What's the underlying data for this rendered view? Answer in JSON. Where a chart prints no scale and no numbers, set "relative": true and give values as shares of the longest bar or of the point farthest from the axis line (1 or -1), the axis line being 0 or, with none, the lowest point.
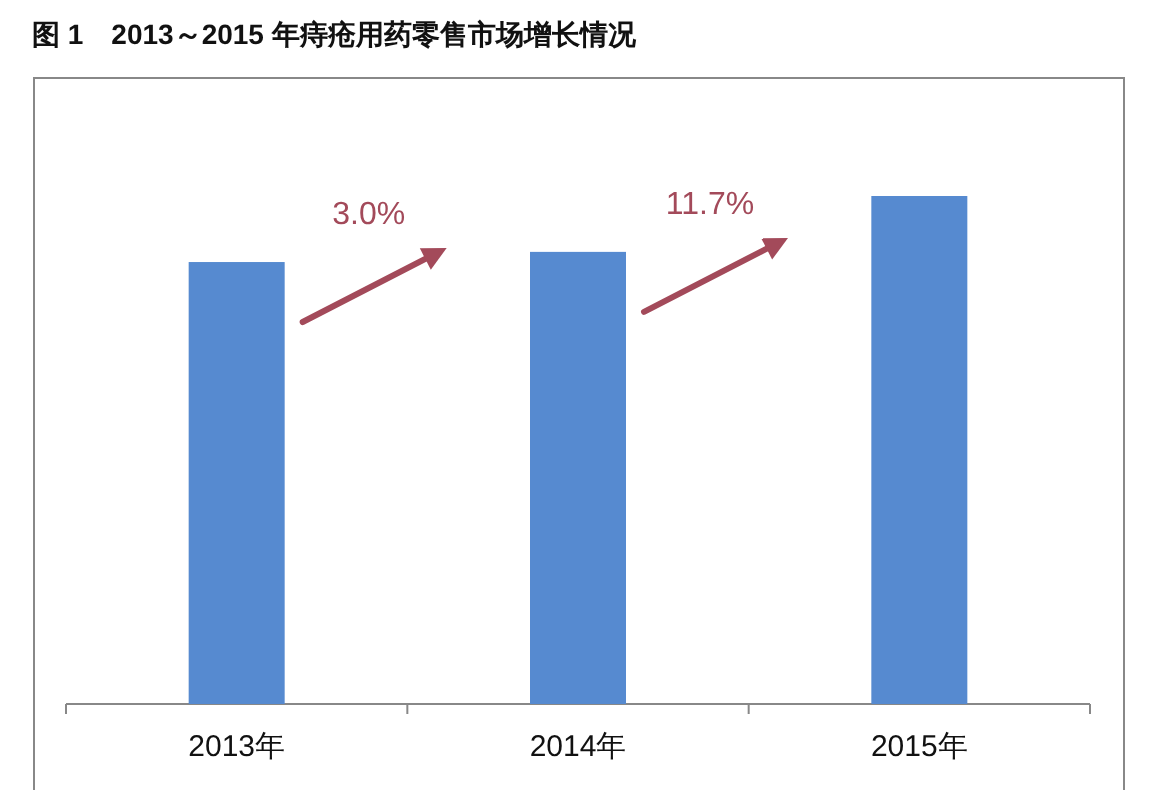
{
  "chart_data": {
    "type": "bar",
    "title": "图 1　2013～2015 年痔疮用药零售市场增长情况",
    "categories": [
      "2013年",
      "2014年",
      "2015年"
    ],
    "values": [
      0.87,
      0.89,
      1
    ],
    "color": "#568ad0",
    "relative": true,
    "annotations": [
      "3.0%",
      "11.7%"
    ]
  }
}
